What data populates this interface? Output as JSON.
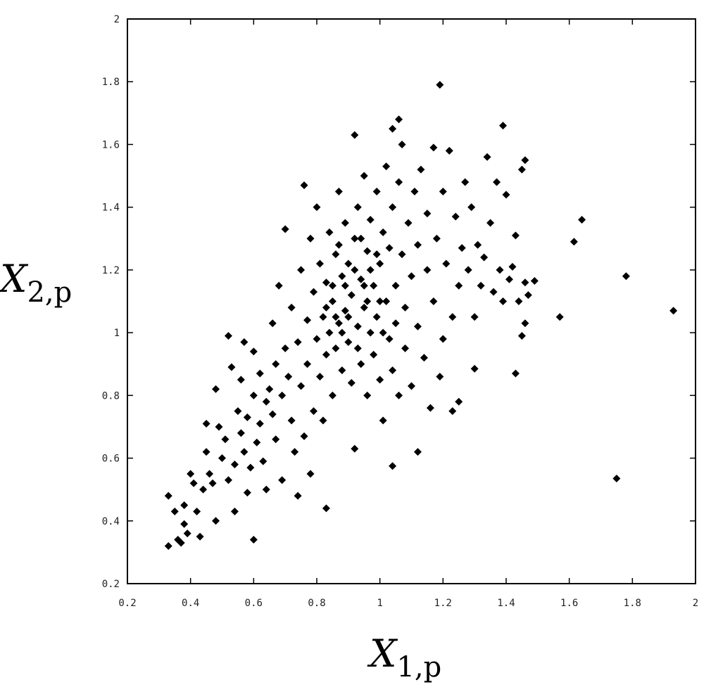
{
  "chart_data": {
    "type": "scatter",
    "xlabel": {
      "symbol": "X",
      "subscript": "1,p"
    },
    "ylabel": {
      "symbol": "X",
      "subscript": "2,p"
    },
    "color": "#000000",
    "xlim": [
      0.2,
      2
    ],
    "ylim": [
      0.2,
      2
    ],
    "xticks": [
      0.2,
      0.4,
      0.6,
      0.8,
      1,
      1.2,
      1.4,
      1.6,
      1.8,
      2
    ],
    "yticks": [
      0.2,
      0.4,
      0.6,
      0.8,
      1,
      1.2,
      1.4,
      1.6,
      1.8,
      2
    ],
    "x": [
      1.19,
      1.93,
      1.78,
      1.75,
      1.64,
      1.615,
      1.57,
      1.43,
      1.39,
      1.46,
      1.49,
      1.06,
      1.04,
      0.33,
      0.6,
      0.83,
      0.92,
      1.12,
      1.04,
      1.3,
      0.33,
      0.35,
      0.36,
      0.37,
      0.38,
      0.38,
      0.39,
      0.4,
      0.41,
      0.42,
      0.43,
      0.44,
      0.45,
      0.45,
      0.46,
      0.47,
      0.48,
      0.48,
      0.49,
      0.5,
      0.51,
      0.52,
      0.52,
      0.53,
      0.54,
      0.54,
      0.55,
      0.56,
      0.56,
      0.57,
      0.57,
      0.58,
      0.58,
      0.59,
      0.6,
      0.6,
      0.61,
      0.62,
      0.62,
      0.63,
      0.64,
      0.64,
      0.65,
      0.66,
      0.66,
      0.67,
      0.67,
      0.68,
      0.69,
      0.69,
      0.7,
      0.7,
      0.71,
      0.72,
      0.72,
      0.73,
      0.74,
      0.74,
      0.75,
      0.75,
      0.76,
      0.76,
      0.77,
      0.77,
      0.78,
      0.78,
      0.79,
      0.79,
      0.8,
      0.8,
      0.81,
      0.81,
      0.82,
      0.82,
      0.83,
      0.83,
      0.84,
      0.84,
      0.85,
      0.85,
      0.86,
      0.86,
      0.87,
      0.87,
      0.88,
      0.88,
      0.89,
      0.89,
      0.9,
      0.9,
      0.91,
      0.91,
      0.92,
      0.92,
      0.93,
      0.93,
      0.94,
      0.94,
      0.95,
      0.95,
      0.96,
      0.96,
      0.97,
      0.97,
      0.98,
      0.98,
      0.99,
      0.99,
      1.0,
      1.0,
      1.01,
      1.01,
      1.02,
      1.02,
      1.03,
      1.03,
      1.04,
      1.04,
      1.05,
      1.05,
      1.06,
      1.06,
      1.07,
      1.07,
      1.08,
      1.08,
      1.09,
      1.1,
      1.1,
      1.11,
      1.12,
      1.12,
      1.13,
      1.14,
      1.15,
      1.15,
      1.16,
      1.17,
      1.17,
      1.18,
      1.19,
      1.2,
      1.2,
      1.21,
      1.22,
      1.23,
      1.23,
      1.24,
      1.25,
      1.25,
      1.26,
      1.27,
      1.28,
      1.29,
      1.3,
      1.31,
      1.32,
      1.33,
      1.34,
      1.35,
      1.36,
      1.37,
      1.38,
      1.39,
      1.4,
      1.41,
      1.42,
      1.43,
      1.44,
      1.45,
      1.46,
      1.46,
      1.47,
      1.45,
      0.85,
      0.9,
      0.95,
      1.0,
      0.88,
      0.92,
      0.96,
      0.83,
      0.87,
      0.97,
      1.01,
      0.93,
      0.89,
      0.99,
      0.86,
      0.94
    ],
    "values": [
      1.79,
      1.07,
      1.18,
      0.535,
      1.36,
      1.29,
      1.05,
      0.87,
      1.66,
      1.55,
      1.165,
      1.68,
      1.65,
      0.32,
      0.34,
      0.44,
      0.63,
      0.62,
      0.575,
      0.885,
      0.48,
      0.43,
      0.34,
      0.33,
      0.45,
      0.39,
      0.36,
      0.55,
      0.52,
      0.43,
      0.35,
      0.5,
      0.62,
      0.71,
      0.55,
      0.52,
      0.4,
      0.82,
      0.7,
      0.6,
      0.66,
      0.53,
      0.99,
      0.89,
      0.58,
      0.43,
      0.75,
      0.85,
      0.68,
      0.97,
      0.62,
      0.73,
      0.49,
      0.57,
      0.8,
      0.94,
      0.65,
      0.71,
      0.87,
      0.59,
      0.78,
      0.5,
      0.82,
      0.74,
      1.03,
      0.9,
      0.66,
      1.15,
      0.8,
      0.53,
      0.95,
      1.33,
      0.86,
      0.72,
      1.08,
      0.62,
      0.97,
      0.48,
      1.2,
      0.83,
      1.47,
      0.67,
      1.04,
      0.9,
      1.3,
      0.55,
      0.75,
      1.13,
      0.98,
      1.4,
      0.86,
      1.22,
      1.05,
      0.72,
      1.16,
      0.93,
      1.32,
      1.0,
      0.8,
      1.1,
      1.25,
      0.95,
      1.45,
      1.03,
      0.88,
      1.18,
      1.35,
      1.07,
      0.97,
      1.22,
      0.84,
      1.12,
      1.3,
      1.63,
      1.02,
      1.4,
      0.9,
      1.17,
      1.5,
      1.08,
      1.26,
      0.8,
      1.0,
      1.36,
      1.15,
      0.93,
      1.45,
      1.05,
      1.22,
      0.85,
      1.32,
      0.72,
      1.1,
      1.53,
      0.98,
      1.27,
      1.4,
      0.88,
      1.15,
      1.03,
      1.48,
      0.8,
      1.25,
      1.6,
      1.08,
      0.95,
      1.35,
      1.18,
      0.83,
      1.45,
      1.02,
      1.28,
      1.52,
      0.92,
      1.2,
      1.38,
      0.76,
      1.1,
      1.59,
      1.3,
      0.86,
      1.45,
      0.98,
      1.22,
      1.58,
      1.05,
      0.75,
      1.37,
      1.15,
      0.78,
      1.27,
      1.48,
      1.2,
      1.4,
      1.05,
      1.28,
      1.15,
      1.24,
      1.56,
      1.35,
      1.13,
      1.48,
      1.2,
      1.1,
      1.44,
      1.17,
      1.21,
      1.31,
      1.1,
      0.99,
      1.03,
      1.16,
      1.12,
      1.52,
      1.15,
      1.05,
      1.15,
      1.1,
      1.0,
      1.2,
      1.1,
      1.08,
      1.28,
      1.2,
      1.0,
      0.95,
      1.15,
      1.25,
      1.05,
      1.3
    ]
  }
}
